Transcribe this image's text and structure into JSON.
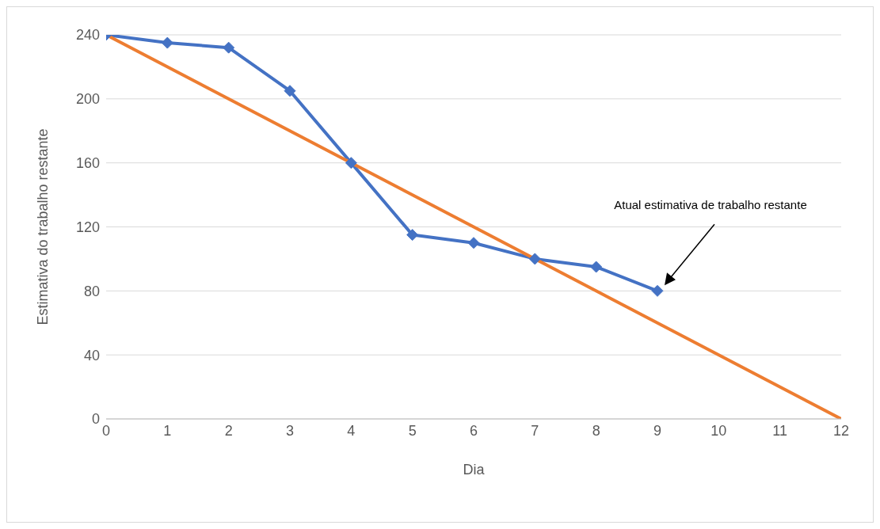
{
  "chart_data": {
    "type": "line",
    "xlabel": "Dia",
    "ylabel": "Estimativa do trabalho restante",
    "x": [
      0,
      1,
      2,
      3,
      4,
      5,
      6,
      7,
      8,
      9
    ],
    "series": [
      {
        "color": "#4472c4",
        "values": [
          240,
          235,
          232,
          205,
          160,
          115,
          110,
          100,
          95,
          80
        ],
        "marker": "diamond"
      },
      {
        "color": "#ed7d31",
        "x": [
          0,
          12
        ],
        "values": [
          240,
          0
        ],
        "marker": "none"
      }
    ],
    "xlim": [
      0,
      12
    ],
    "xticks": [
      0,
      1,
      2,
      3,
      4,
      5,
      6,
      7,
      8,
      9,
      10,
      11,
      12
    ],
    "ylim": [
      0,
      240
    ],
    "yticks": [
      0,
      40,
      80,
      120,
      160,
      200,
      240
    ],
    "grid": "y",
    "legend": false,
    "annotations": [
      "Atual estimativa de trabalho restante"
    ]
  }
}
